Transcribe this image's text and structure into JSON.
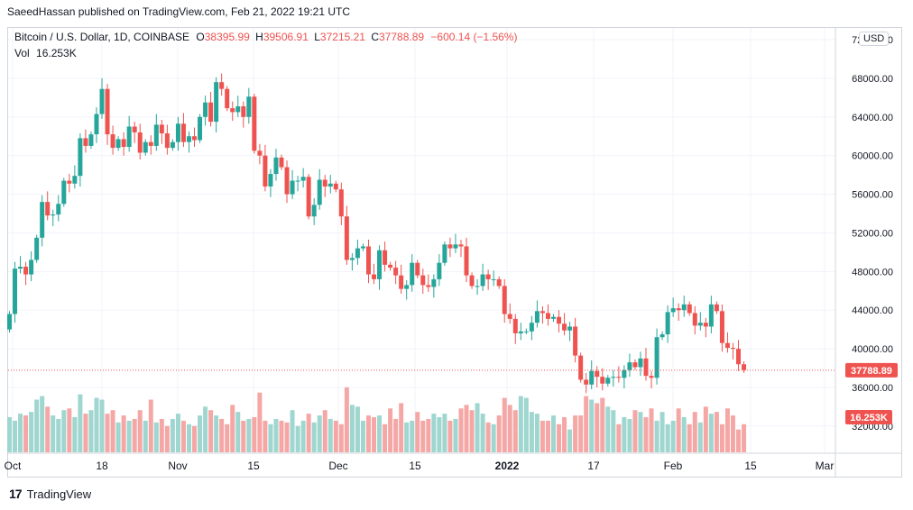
{
  "publisher": "SaeedHassan published on TradingView.com, Feb 21, 2022 19:21 UTC",
  "legend": {
    "symbol": "Bitcoin / U.S. Dollar, 1D, COINBASE",
    "o_label": "O",
    "o": "38395.99",
    "h_label": "H",
    "h": "39506.91",
    "l_label": "L",
    "l": "37215.21",
    "c_label": "C",
    "c": "37788.89",
    "change": "−600.14 (−1.56%)",
    "vol_label": "Vol",
    "vol": "16.253K"
  },
  "currency_badge": "USD",
  "last_price_label": "37788.89",
  "last_volume_label": "16.253K",
  "brand": "TradingView",
  "colors": {
    "up": "#26a69a",
    "down": "#ef5350",
    "vol_up": "#9fd6cf",
    "vol_down": "#f5a7a6"
  },
  "chart_data": {
    "type": "candlestick",
    "y_ticks": [
      "72000.00",
      "68000.00",
      "64000.00",
      "60000.00",
      "56000.00",
      "52000.00",
      "48000.00",
      "44000.00",
      "40000.00",
      "36000.00",
      "32000.00"
    ],
    "x_ticks": [
      "Oct",
      "18",
      "Nov",
      "15",
      "Dec",
      "15",
      "2022",
      "17",
      "Feb",
      "15",
      "Mar"
    ],
    "ylim": [
      30500,
      73500
    ],
    "close": [
      43600,
      48300,
      48500,
      47700,
      49200,
      51500,
      55200,
      53800,
      53900,
      55000,
      57400,
      57100,
      57900,
      61800,
      61000,
      62200,
      64300,
      66900,
      62200,
      60800,
      61700,
      60900,
      63000,
      62400,
      60300,
      61400,
      61000,
      63200,
      62300,
      60800,
      61400,
      63300,
      61400,
      62000,
      61600,
      64000,
      65500,
      63500,
      67600,
      66900,
      64900,
      64500,
      65100,
      64000,
      66100,
      60500,
      60000,
      56800,
      58100,
      59800,
      58800,
      56000,
      57400,
      57400,
      57800,
      53700,
      54900,
      57500,
      56800,
      57100,
      56500,
      53700,
      49200,
      49400,
      50400,
      50600,
      47700,
      47200,
      50200,
      48700,
      48400,
      47600,
      46200,
      46600,
      48900,
      47600,
      46600,
      46400,
      47200,
      48900,
      50800,
      50400,
      50800,
      50600,
      47600,
      46500,
      46500,
      47700,
      47200,
      47200,
      46500,
      43600,
      43100,
      41600,
      41800,
      41800,
      42700,
      43900,
      43700,
      43100,
      43300,
      42600,
      41900,
      42300,
      39300,
      36800,
      36300,
      37700,
      37100,
      36400,
      37000,
      37100,
      37000,
      37800,
      38600,
      38100,
      39000,
      37200,
      37000,
      41200,
      41500,
      43800,
      44200,
      44000,
      44600,
      43700,
      42400,
      42700,
      42300,
      44600,
      43900,
      40600,
      40100,
      40000,
      38400,
      37800
    ],
    "volume": [
      20,
      18,
      22,
      21,
      23,
      30,
      32,
      26,
      21,
      19,
      24,
      25,
      20,
      33,
      22,
      24,
      31,
      30,
      22,
      24,
      17,
      21,
      18,
      19,
      24,
      18,
      30,
      17,
      19,
      15,
      19,
      22,
      18,
      16,
      15,
      21,
      26,
      24,
      21,
      19,
      16,
      27,
      23,
      18,
      19,
      20,
      34,
      18,
      16,
      19,
      18,
      17,
      24,
      15,
      18,
      22,
      17,
      21,
      24,
      19,
      18,
      16,
      37,
      27,
      26,
      18,
      21,
      20,
      21,
      16,
      25,
      19,
      28,
      17,
      18,
      23,
      18,
      19,
      22,
      20,
      22,
      18,
      19,
      25,
      27,
      24,
      28,
      22,
      17,
      16,
      21,
      31,
      27,
      24,
      32,
      31,
      23,
      22,
      18,
      18,
      21,
      16,
      20,
      13,
      21,
      21,
      32,
      30,
      28,
      31,
      26,
      24,
      16,
      20,
      19,
      24,
      23,
      20,
      25,
      18,
      23,
      16,
      18,
      25,
      20,
      16,
      23,
      17,
      26,
      22,
      23,
      16,
      25,
      21,
      13,
      16
    ]
  }
}
